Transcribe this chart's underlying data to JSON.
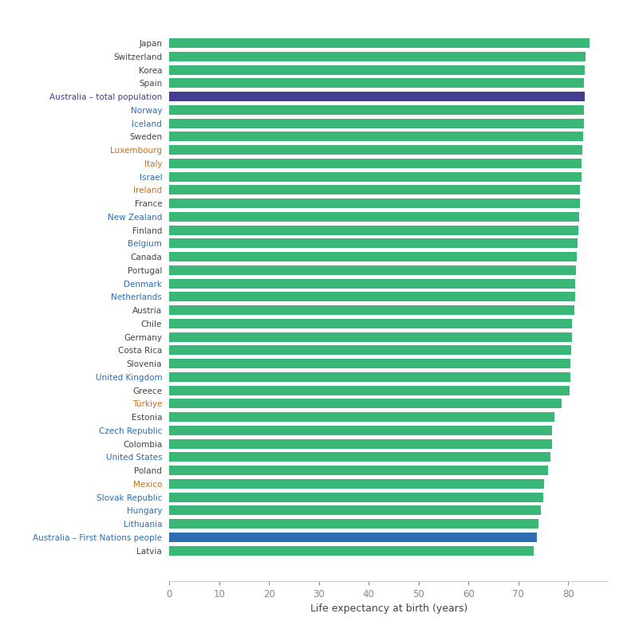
{
  "countries": [
    "Japan",
    "Switzerland",
    "Korea",
    "Spain",
    "Australia – total population",
    "Norway",
    "Iceland",
    "Sweden",
    "Luxembourg",
    "Italy",
    "Israel",
    "Ireland",
    "France",
    "New Zealand",
    "Finland",
    "Belgium",
    "Canada",
    "Portugal",
    "Denmark",
    "Netherlands",
    "Austria",
    "Chile",
    "Germany",
    "Costa Rica",
    "Slovenia",
    "United Kingdom",
    "Greece",
    "Türkiye",
    "Estonia",
    "Czech Republic",
    "Colombia",
    "United States",
    "Poland",
    "Mexico",
    "Slovak Republic",
    "Hungary",
    "Lithuania",
    "Australia – First Nations people",
    "Latvia"
  ],
  "values": [
    84.3,
    83.4,
    83.3,
    83.2,
    83.3,
    83.1,
    83.1,
    83.0,
    82.8,
    82.7,
    82.6,
    82.3,
    82.3,
    82.2,
    82.0,
    81.9,
    81.7,
    81.5,
    81.4,
    81.3,
    81.2,
    80.8,
    80.7,
    80.5,
    80.4,
    80.4,
    80.3,
    78.6,
    77.2,
    76.8,
    76.7,
    76.4,
    75.9,
    75.1,
    74.9,
    74.5,
    74.0,
    73.7,
    73.1
  ],
  "bar_colors": [
    "#3ab776",
    "#3ab776",
    "#3ab776",
    "#3ab776",
    "#433f8e",
    "#3ab776",
    "#3ab776",
    "#3ab776",
    "#3ab776",
    "#3ab776",
    "#3ab776",
    "#3ab776",
    "#3ab776",
    "#3ab776",
    "#3ab776",
    "#3ab776",
    "#3ab776",
    "#3ab776",
    "#3ab776",
    "#3ab776",
    "#3ab776",
    "#3ab776",
    "#3ab776",
    "#3ab776",
    "#3ab776",
    "#3ab776",
    "#3ab776",
    "#3ab776",
    "#3ab776",
    "#3ab776",
    "#3ab776",
    "#3ab776",
    "#3ab776",
    "#3ab776",
    "#3ab776",
    "#3ab776",
    "#3ab776",
    "#2e6db4",
    "#3ab776"
  ],
  "label_colors": [
    "#444444",
    "#444444",
    "#444444",
    "#444444",
    "#433f8e",
    "#2e6db4",
    "#2e6db4",
    "#444444",
    "#c87020",
    "#c87020",
    "#2e6db4",
    "#c87020",
    "#444444",
    "#2e6db4",
    "#444444",
    "#2e6db4",
    "#444444",
    "#444444",
    "#2e6db4",
    "#2e6db4",
    "#444444",
    "#444444",
    "#444444",
    "#444444",
    "#444444",
    "#2e6db4",
    "#444444",
    "#c87020",
    "#444444",
    "#2e6db4",
    "#444444",
    "#2e6db4",
    "#444444",
    "#c87020",
    "#2e6db4",
    "#2e6db4",
    "#2e6db4",
    "#2e6db4",
    "#444444"
  ],
  "xlabel": "Life expectancy at birth (years)",
  "xlim": [
    0,
    88
  ],
  "xticks": [
    0,
    10,
    20,
    30,
    40,
    50,
    60,
    70,
    80
  ],
  "background_color": "#ffffff",
  "bar_height": 0.72,
  "figsize": [
    7.86,
    7.84
  ],
  "dpi": 100
}
